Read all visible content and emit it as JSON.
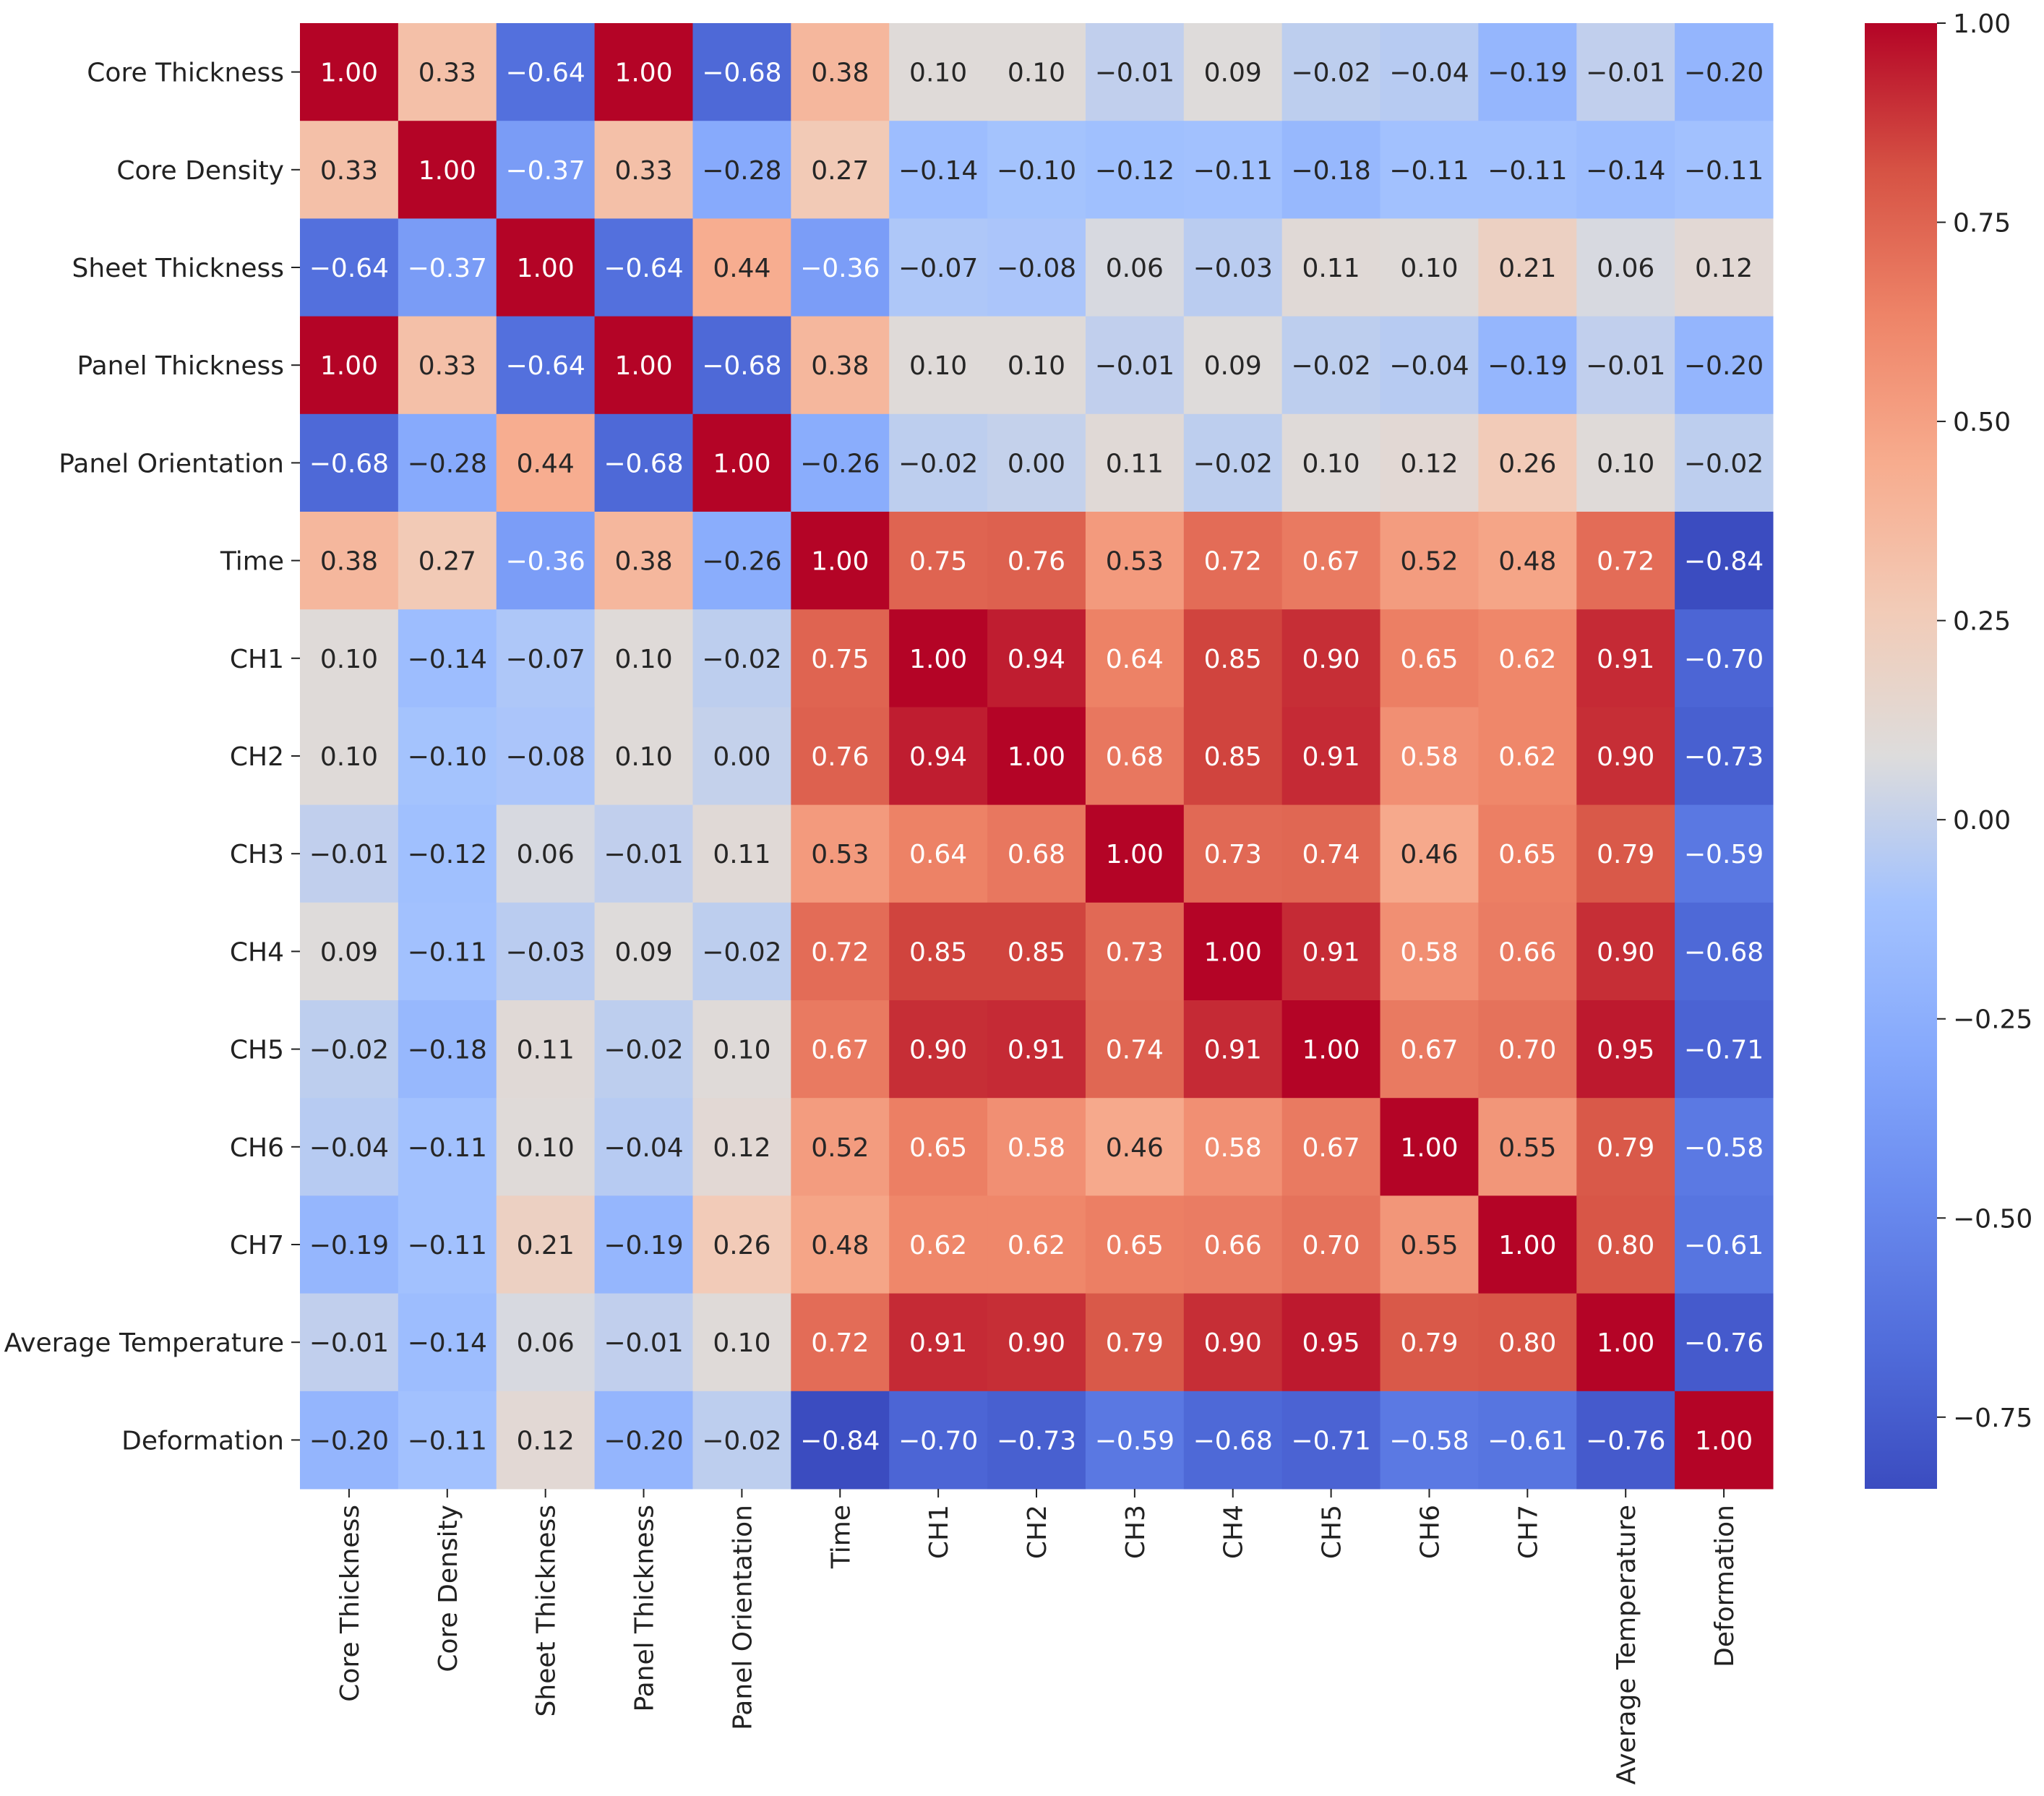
{
  "chart_data": {
    "type": "heatmap",
    "title": "",
    "colormap": "coolwarm",
    "vmin": -0.84,
    "vmax": 1.0,
    "labels": [
      "Core Thickness",
      "Core Density",
      "Sheet Thickness",
      "Panel Thickness",
      "Panel Orientation",
      "Time",
      "CH1",
      "CH2",
      "CH3",
      "CH4",
      "CH5",
      "CH6",
      "CH7",
      "Average Temperature",
      "Deformation"
    ],
    "colorbar_ticks": [
      "1.00",
      "0.75",
      "0.50",
      "0.25",
      "0.00",
      "−0.25",
      "−0.50",
      "−0.75"
    ],
    "colorbar_tick_values": [
      1.0,
      0.75,
      0.5,
      0.25,
      0.0,
      -0.25,
      -0.5,
      -0.75
    ],
    "matrix": [
      [
        1.0,
        0.33,
        -0.64,
        1.0,
        -0.68,
        0.38,
        0.1,
        0.1,
        -0.01,
        0.09,
        -0.02,
        -0.04,
        -0.19,
        -0.01,
        -0.2
      ],
      [
        0.33,
        1.0,
        -0.37,
        0.33,
        -0.28,
        0.27,
        -0.14,
        -0.1,
        -0.12,
        -0.11,
        -0.18,
        -0.11,
        -0.11,
        -0.14,
        -0.11
      ],
      [
        -0.64,
        -0.37,
        1.0,
        -0.64,
        0.44,
        -0.36,
        -0.07,
        -0.08,
        0.06,
        -0.03,
        0.11,
        0.1,
        0.21,
        0.06,
        0.12
      ],
      [
        1.0,
        0.33,
        -0.64,
        1.0,
        -0.68,
        0.38,
        0.1,
        0.1,
        -0.01,
        0.09,
        -0.02,
        -0.04,
        -0.19,
        -0.01,
        -0.2
      ],
      [
        -0.68,
        -0.28,
        0.44,
        -0.68,
        1.0,
        -0.26,
        -0.02,
        0.0,
        0.11,
        -0.02,
        0.1,
        0.12,
        0.26,
        0.1,
        -0.02
      ],
      [
        0.38,
        0.27,
        -0.36,
        0.38,
        -0.26,
        1.0,
        0.75,
        0.76,
        0.53,
        0.72,
        0.67,
        0.52,
        0.48,
        0.72,
        -0.84
      ],
      [
        0.1,
        -0.14,
        -0.07,
        0.1,
        -0.02,
        0.75,
        1.0,
        0.94,
        0.64,
        0.85,
        0.9,
        0.65,
        0.62,
        0.91,
        -0.7
      ],
      [
        0.1,
        -0.1,
        -0.08,
        0.1,
        0.0,
        0.76,
        0.94,
        1.0,
        0.68,
        0.85,
        0.91,
        0.58,
        0.62,
        0.9,
        -0.73
      ],
      [
        -0.01,
        -0.12,
        0.06,
        -0.01,
        0.11,
        0.53,
        0.64,
        0.68,
        1.0,
        0.73,
        0.74,
        0.46,
        0.65,
        0.79,
        -0.59
      ],
      [
        0.09,
        -0.11,
        -0.03,
        0.09,
        -0.02,
        0.72,
        0.85,
        0.85,
        0.73,
        1.0,
        0.91,
        0.58,
        0.66,
        0.9,
        -0.68
      ],
      [
        -0.02,
        -0.18,
        0.11,
        -0.02,
        0.1,
        0.67,
        0.9,
        0.91,
        0.74,
        0.91,
        1.0,
        0.67,
        0.7,
        0.95,
        -0.71
      ],
      [
        -0.04,
        -0.11,
        0.1,
        -0.04,
        0.12,
        0.52,
        0.65,
        0.58,
        0.46,
        0.58,
        0.67,
        1.0,
        0.55,
        0.79,
        -0.58
      ],
      [
        -0.19,
        -0.11,
        0.21,
        -0.19,
        0.26,
        0.48,
        0.62,
        0.62,
        0.65,
        0.66,
        0.7,
        0.55,
        1.0,
        0.8,
        -0.61
      ],
      [
        -0.01,
        -0.14,
        0.06,
        -0.01,
        0.1,
        0.72,
        0.91,
        0.9,
        0.79,
        0.9,
        0.95,
        0.79,
        0.8,
        1.0,
        -0.76
      ],
      [
        -0.2,
        -0.11,
        0.12,
        -0.2,
        -0.02,
        -0.84,
        -0.7,
        -0.73,
        -0.59,
        -0.68,
        -0.71,
        -0.58,
        -0.61,
        -0.76,
        1.0
      ]
    ]
  }
}
